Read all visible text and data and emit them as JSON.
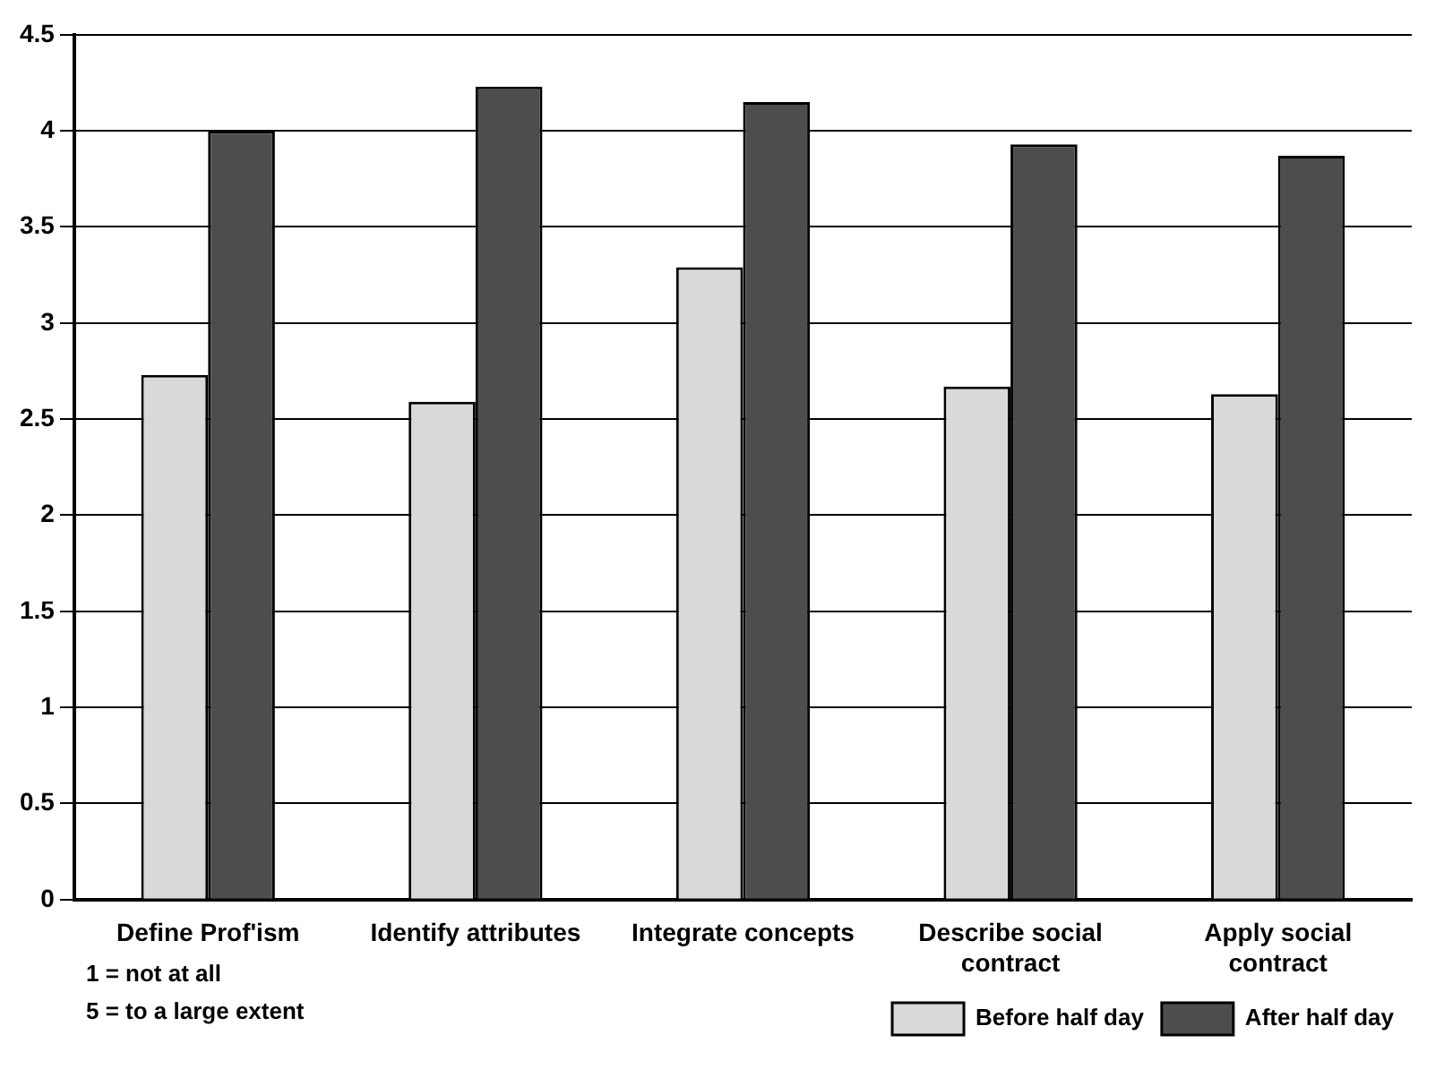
{
  "chart_data": {
    "type": "bar",
    "categories": [
      "Define Prof'ism",
      "Identify attributes",
      "Integrate concepts",
      "Describe social contract",
      "Apply social contract"
    ],
    "series": [
      {
        "name": "Before half day",
        "color": "#d9d9d9",
        "values": [
          2.73,
          2.59,
          3.29,
          2.67,
          2.63
        ]
      },
      {
        "name": "After half day",
        "color": "#4d4d4d",
        "values": [
          4.0,
          4.23,
          4.15,
          3.93,
          3.87
        ]
      }
    ],
    "ylim": [
      0,
      4.5
    ],
    "yticks": [
      0,
      0.5,
      1,
      1.5,
      2,
      2.5,
      3,
      3.5,
      4,
      4.5
    ],
    "grid": "y",
    "legend": "bottom right",
    "annotations": [
      "1 = not at all",
      "5 = to a large extent"
    ]
  }
}
